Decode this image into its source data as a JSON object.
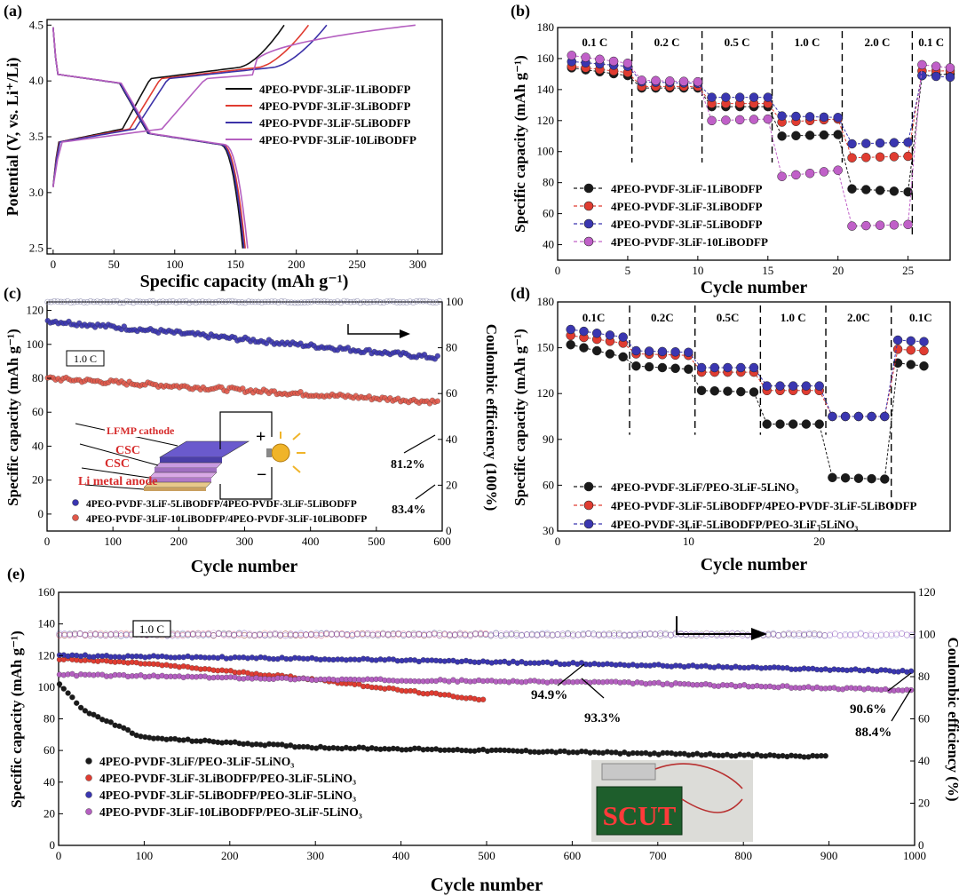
{
  "figure": {
    "panel_labels": [
      "(a)",
      "(b)",
      "(c)",
      "(d)",
      "(e)"
    ]
  },
  "chart_data": [
    {
      "id": "a",
      "type": "line",
      "xlabel": "Specific capacity (mAh g⁻¹)",
      "ylabel": "Potential (V, vs. Li⁺/Li)",
      "xlim": [
        -5,
        320
      ],
      "ylim": [
        2.45,
        4.55
      ],
      "xticks": [
        0,
        50,
        100,
        150,
        200,
        250,
        300
      ],
      "yticks": [
        2.5,
        3.0,
        3.5,
        4.0,
        4.5
      ],
      "legend_position": "center-right",
      "series": [
        {
          "name": "4PEO-PVDF-3LiF-1LiBODFP",
          "color": "#111111",
          "charge_end": 190,
          "discharge_end": 156
        },
        {
          "name": "4PEO-PVDF-3LiF-3LiBODFP",
          "color": "#e03c31",
          "charge_end": 210,
          "discharge_end": 158
        },
        {
          "name": "4PEO-PVDF-3LiF-5LiBODFP",
          "color": "#3c32a8",
          "charge_end": 225,
          "discharge_end": 157
        },
        {
          "name": "4PEO-PVDF-3LiF-10LiBODFP",
          "color": "#b45fc0",
          "charge_end": 298,
          "discharge_end": 160
        }
      ]
    },
    {
      "id": "b",
      "type": "scatter",
      "xlabel": "Cycle number",
      "ylabel": "Specific capacity (mAh g⁻¹)",
      "xlim": [
        0,
        28
      ],
      "ylim": [
        30,
        180
      ],
      "xticks": [
        0,
        5,
        10,
        15,
        20,
        25
      ],
      "yticks": [
        40,
        60,
        80,
        100,
        120,
        140,
        160,
        180
      ],
      "rate_labels": [
        "0.1 C",
        "0.2 C",
        "0.5 C",
        "1.0 C",
        "2.0 C",
        "0.1 C"
      ],
      "rate_boundaries": [
        5.3,
        10.3,
        15.3,
        20.3,
        25.3
      ],
      "legend_position": "lower-left",
      "series": [
        {
          "name": "4PEO-PVDF-3LiF-1LiBODFP",
          "color": "#1a1a1a",
          "steps": [
            [
              154,
              149
            ],
            [
              141,
              141
            ],
            [
              129,
              129
            ],
            [
              110,
              111
            ],
            [
              76,
              74
            ],
            [
              149,
              150
            ]
          ]
        },
        {
          "name": "4PEO-PVDF-3LiF-3LiBODFP",
          "color": "#e03c31",
          "steps": [
            [
              155,
              151
            ],
            [
              142,
              142
            ],
            [
              131,
              131
            ],
            [
              119,
              121
            ],
            [
              96,
              97
            ],
            [
              152,
              152
            ]
          ]
        },
        {
          "name": "4PEO-PVDF-3LiF-5LiBODFP",
          "color": "#3a36b0",
          "steps": [
            [
              158,
              155
            ],
            [
              145,
              144
            ],
            [
              135,
              135
            ],
            [
              123,
              122
            ],
            [
              105,
              106
            ],
            [
              149,
              148
            ]
          ]
        },
        {
          "name": "4PEO-PVDF-3LiF-10LiBODFP",
          "color": "#c060c8",
          "steps": [
            [
              162,
              157
            ],
            [
              146,
              145
            ],
            [
              120,
              121
            ],
            [
              84,
              88
            ],
            [
              52,
              53
            ],
            [
              156,
              154
            ]
          ]
        }
      ]
    },
    {
      "id": "c",
      "type": "scatter",
      "xlabel": "Cycle number",
      "ylabel": "Specific capacity (mAh g⁻¹)",
      "ylabel_right": "Coulombic efficiency (100%)",
      "xlim": [
        0,
        600
      ],
      "ylim": [
        -10,
        125
      ],
      "ylim_right": [
        0,
        100
      ],
      "xticks": [
        0,
        100,
        200,
        300,
        400,
        500,
        600
      ],
      "yticks": [
        0,
        20,
        40,
        60,
        80,
        100,
        120
      ],
      "yticks_right": [
        0,
        20,
        40,
        60,
        80,
        100
      ],
      "rate_box": "1.0 C",
      "annotations": [
        "81.2%",
        "83.4%"
      ],
      "inset_labels": [
        "LFMP cathode",
        "CSC",
        "CSC",
        "Li metal anode",
        "+",
        "−"
      ],
      "legend_position": "bottom-left",
      "efficiency_series": {
        "value": 100
      },
      "series": [
        {
          "name": "4PEO-PVDF-3LiF-5LiBODFP/4PEO-PVDF-3LiF-5LiBODFP",
          "color": "#3a36b0",
          "start": 114,
          "end": 92
        },
        {
          "name": "4PEO-PVDF-3LiF-10LiBODFP/4PEO-PVDF-3LiF-10LiBODFP",
          "color": "#e0584a",
          "start": 80,
          "end": 66
        }
      ]
    },
    {
      "id": "d",
      "type": "scatter",
      "xlabel": "Cycle number",
      "ylabel": "Specific capacity (mAh g⁻¹)",
      "xlim": [
        0,
        30
      ],
      "ylim": [
        30,
        180
      ],
      "xticks": [
        0,
        10,
        20
      ],
      "yticks": [
        30,
        60,
        90,
        120,
        150,
        180
      ],
      "rate_labels": [
        "0.1C",
        "0.2C",
        "0.5C",
        "1.0 C",
        "2.0C",
        "0.1C"
      ],
      "rate_boundaries": [
        5.5,
        10.5,
        15.5,
        20.5,
        25.5
      ],
      "legend_position": "lower-left",
      "series": [
        {
          "name": "4PEO-PVDF-3LiF/PEO-3LiF-5LiNO₃",
          "color": "#1a1a1a",
          "steps": [
            [
              152,
              144
            ],
            [
              138,
              136
            ],
            [
              122,
              121
            ],
            [
              100,
              100
            ],
            [
              65,
              64
            ],
            [
              140,
              138
            ]
          ]
        },
        {
          "name": "4PEO-PVDF-3LiF-5LiBODFP/4PEO-PVDF-3LiF-5LiBODFP",
          "color": "#e03c31",
          "steps": [
            [
              158,
              153
            ],
            [
              146,
              145
            ],
            [
              134,
              134
            ],
            [
              122,
              122
            ],
            [
              105,
              105
            ],
            [
              149,
              148
            ]
          ]
        },
        {
          "name": "4PEO-PVDF-3LiF-5LiBODFP/PEO-3LiF-5LiNO₃",
          "color": "#3a36b0",
          "steps": [
            [
              162,
              157
            ],
            [
              148,
              147
            ],
            [
              137,
              137
            ],
            [
              125,
              125
            ],
            [
              105,
              105
            ],
            [
              155,
              154
            ]
          ]
        }
      ]
    },
    {
      "id": "e",
      "type": "scatter",
      "xlabel": "Cycle number",
      "ylabel": "Specific capacity (mAh g⁻¹)",
      "ylabel_right": "Coulombic efficiency (%)",
      "xlim": [
        0,
        1000
      ],
      "ylim": [
        0,
        160
      ],
      "ylim_right": [
        0,
        120
      ],
      "xticks": [
        0,
        100,
        200,
        300,
        400,
        500,
        600,
        700,
        800,
        900,
        1000
      ],
      "yticks": [
        0,
        20,
        40,
        60,
        80,
        100,
        120,
        140,
        160
      ],
      "yticks_right": [
        0,
        20,
        40,
        60,
        80,
        100,
        120
      ],
      "rate_box": "1.0 C",
      "annotations": [
        "94.9%",
        "93.3%",
        "90.6%",
        "88.4%"
      ],
      "photo_text": "SCUT",
      "legend_position": "bottom-left",
      "efficiency_series": {
        "value": 100
      },
      "series": [
        {
          "name": "4PEO-PVDF-3LiF/PEO-3LiF-5LiNO₃",
          "color": "#1a1a1a",
          "points": [
            [
              1,
              102
            ],
            [
              30,
              85
            ],
            [
              100,
              68
            ],
            [
              300,
              62
            ],
            [
              600,
              59
            ],
            [
              900,
              56
            ]
          ]
        },
        {
          "name": "4PEO-PVDF-3LiF-3LiBODFP/PEO-3LiF-5LiNO₃",
          "color": "#e03c31",
          "points": [
            [
              1,
              118
            ],
            [
              100,
              115
            ],
            [
              200,
              110
            ],
            [
              300,
              105
            ],
            [
              400,
              98
            ],
            [
              500,
              92
            ]
          ]
        },
        {
          "name": "4PEO-PVDF-3LiF-5LiBODFP/PEO-3LiF-5LiNO₃",
          "color": "#3a36b0",
          "points": [
            [
              1,
              120
            ],
            [
              300,
              118
            ],
            [
              600,
              115
            ],
            [
              1000,
              110
            ]
          ]
        },
        {
          "name": "4PEO-PVDF-3LiF-10LiBODFP/PEO-3LiF-5LiNO₃",
          "color": "#b45fc0",
          "points": [
            [
              1,
              108
            ],
            [
              300,
              105
            ],
            [
              650,
              103
            ],
            [
              1000,
              98
            ]
          ]
        }
      ]
    }
  ]
}
